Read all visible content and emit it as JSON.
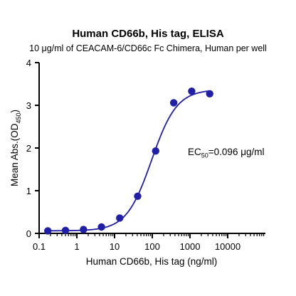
{
  "chart_data": {
    "type": "scatter",
    "title": "Human CD66b, His tag, ELISA",
    "subtitle": "10 μg/ml of CEACAM-6/CD66c Fc Chimera, Human per well",
    "xlabel": "Human CD66b, His tag (ng/ml)",
    "ylabel_main": "Mean Abs.(OD",
    "ylabel_sub": "450",
    "ylabel_end": ")",
    "x_scale": "log",
    "xlim": [
      0.1,
      100000
    ],
    "ylim": [
      0,
      4
    ],
    "x_ticks": [
      "0.1",
      "1",
      "10",
      "100",
      "1000",
      "10000"
    ],
    "y_ticks": [
      "0",
      "1",
      "2",
      "3",
      "4"
    ],
    "grid": false,
    "series": [
      {
        "points": [
          {
            "x": 0.17,
            "y": 0.06
          },
          {
            "x": 0.5,
            "y": 0.07
          },
          {
            "x": 1.5,
            "y": 0.09
          },
          {
            "x": 4.5,
            "y": 0.15
          },
          {
            "x": 13.7,
            "y": 0.36
          },
          {
            "x": 41,
            "y": 0.87
          },
          {
            "x": 123,
            "y": 1.93
          },
          {
            "x": 370,
            "y": 3.06
          },
          {
            "x": 1111,
            "y": 3.33
          },
          {
            "x": 3333,
            "y": 3.27
          }
        ],
        "fit": {
          "bottom": 0.06,
          "top": 3.37,
          "ec50": 96,
          "hill": 1.3
        },
        "color": "#1f1fa8"
      }
    ],
    "annotation": {
      "prefix": "EC",
      "sub": "50",
      "suffix": "=0.096 μg/ml"
    }
  }
}
